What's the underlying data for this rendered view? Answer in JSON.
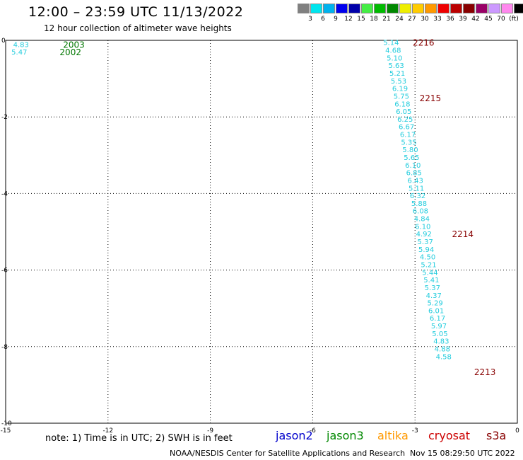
{
  "header": {
    "title": "12:00 – 23:59 UTC 11/13/2022",
    "subtitle": "12 hour collection of altimeter wave heights"
  },
  "colorbar": {
    "colors": [
      "#808080",
      "#00e5ee",
      "#00b2ee",
      "#0000ee",
      "#0000aa",
      "#44ee44",
      "#00bb00",
      "#008800",
      "#eeee00",
      "#ffcc00",
      "#ff9900",
      "#ee0000",
      "#bb0000",
      "#880000",
      "#990066",
      "#cc99ff",
      "#ff88ee",
      "#000000"
    ],
    "labels": [
      "3",
      "6",
      "9",
      "12",
      "15",
      "18",
      "21",
      "24",
      "27",
      "30",
      "33",
      "36",
      "39",
      "42",
      "45",
      "70",
      "(ft)"
    ]
  },
  "chart_data": {
    "type": "scatter",
    "xlim": [
      -15,
      0
    ],
    "ylim": [
      -10,
      0
    ],
    "xticks": [
      "-15",
      "-12",
      "-9",
      "-6",
      "-3",
      "0"
    ],
    "yticks": [
      "0",
      "-2",
      "-4",
      "-6",
      "-8",
      "-10"
    ],
    "grid": true,
    "points": [
      {
        "x": -14.55,
        "y": -0.1,
        "v": "4.83"
      },
      {
        "x": -14.6,
        "y": -0.3,
        "v": "5.47"
      },
      {
        "x": -3.7,
        "y": -0.05,
        "v": "5.14"
      },
      {
        "x": -3.64,
        "y": -0.25,
        "v": "4.68"
      },
      {
        "x": -3.6,
        "y": -0.45,
        "v": "5.10"
      },
      {
        "x": -3.55,
        "y": -0.65,
        "v": "5.63"
      },
      {
        "x": -3.52,
        "y": -0.85,
        "v": "5.21"
      },
      {
        "x": -3.48,
        "y": -1.05,
        "v": "5.53"
      },
      {
        "x": -3.44,
        "y": -1.25,
        "v": "6.19"
      },
      {
        "x": -3.4,
        "y": -1.45,
        "v": "5.75"
      },
      {
        "x": -3.37,
        "y": -1.65,
        "v": "6.18"
      },
      {
        "x": -3.33,
        "y": -1.85,
        "v": "6.05"
      },
      {
        "x": -3.29,
        "y": -2.05,
        "v": "6.25"
      },
      {
        "x": -3.25,
        "y": -2.25,
        "v": "6.67"
      },
      {
        "x": -3.21,
        "y": -2.45,
        "v": "6.17"
      },
      {
        "x": -3.18,
        "y": -2.65,
        "v": "5.35"
      },
      {
        "x": -3.14,
        "y": -2.85,
        "v": "5.80"
      },
      {
        "x": -3.1,
        "y": -3.05,
        "v": "5.65"
      },
      {
        "x": -3.06,
        "y": -3.25,
        "v": "6.10"
      },
      {
        "x": -3.03,
        "y": -3.45,
        "v": "6.85"
      },
      {
        "x": -2.99,
        "y": -3.65,
        "v": "6.43"
      },
      {
        "x": -2.96,
        "y": -3.85,
        "v": "5.11"
      },
      {
        "x": -2.92,
        "y": -4.05,
        "v": "6.32"
      },
      {
        "x": -2.88,
        "y": -4.25,
        "v": "5.88"
      },
      {
        "x": -2.84,
        "y": -4.45,
        "v": "6.08"
      },
      {
        "x": -2.8,
        "y": -4.65,
        "v": "4.84"
      },
      {
        "x": -2.77,
        "y": -4.85,
        "v": "6.10"
      },
      {
        "x": -2.74,
        "y": -5.05,
        "v": "4.92"
      },
      {
        "x": -2.7,
        "y": -5.25,
        "v": "5.37"
      },
      {
        "x": -2.67,
        "y": -5.45,
        "v": "5.94"
      },
      {
        "x": -2.63,
        "y": -5.65,
        "v": "4.50"
      },
      {
        "x": -2.6,
        "y": -5.85,
        "v": "5.21"
      },
      {
        "x": -2.56,
        "y": -6.05,
        "v": "5.44"
      },
      {
        "x": -2.52,
        "y": -6.25,
        "v": "5.41"
      },
      {
        "x": -2.49,
        "y": -6.45,
        "v": "5.37"
      },
      {
        "x": -2.45,
        "y": -6.65,
        "v": "4.37"
      },
      {
        "x": -2.41,
        "y": -6.85,
        "v": "5.29"
      },
      {
        "x": -2.38,
        "y": -7.05,
        "v": "6.01"
      },
      {
        "x": -2.34,
        "y": -7.25,
        "v": "6.17"
      },
      {
        "x": -2.3,
        "y": -7.45,
        "v": "5.97"
      },
      {
        "x": -2.27,
        "y": -7.65,
        "v": "5.05"
      },
      {
        "x": -2.23,
        "y": -7.85,
        "v": "4.83"
      },
      {
        "x": -2.2,
        "y": -8.05,
        "v": "4.88"
      },
      {
        "x": -2.16,
        "y": -8.25,
        "v": "4.58"
      }
    ],
    "pass_labels": [
      {
        "x": -13.0,
        "y": -0.1,
        "text": "2003",
        "color": "#007700"
      },
      {
        "x": -13.1,
        "y": -0.3,
        "text": "2002",
        "color": "#007700"
      },
      {
        "x": -2.75,
        "y": -0.05,
        "text": "2216",
        "color": "#880000"
      },
      {
        "x": -2.55,
        "y": -1.5,
        "text": "2215",
        "color": "#880000"
      },
      {
        "x": -1.6,
        "y": -5.05,
        "text": "2214",
        "color": "#880000"
      },
      {
        "x": -0.95,
        "y": -8.65,
        "text": "2213",
        "color": "#880000"
      }
    ]
  },
  "note": "note:  1) Time is in UTC; 2) SWH is in feet",
  "legend": [
    {
      "name": "jason2",
      "color": "#0000cc"
    },
    {
      "name": "jason3",
      "color": "#008800"
    },
    {
      "name": "altika",
      "color": "#ff9900"
    },
    {
      "name": "cryosat",
      "color": "#cc0000"
    },
    {
      "name": "s3a",
      "color": "#880000"
    }
  ],
  "footer": {
    "credit": "NOAA/NESDIS Center for Satellite Applications and Research",
    "timestamp": "Nov 15 08:29:50 UTC 2022"
  }
}
